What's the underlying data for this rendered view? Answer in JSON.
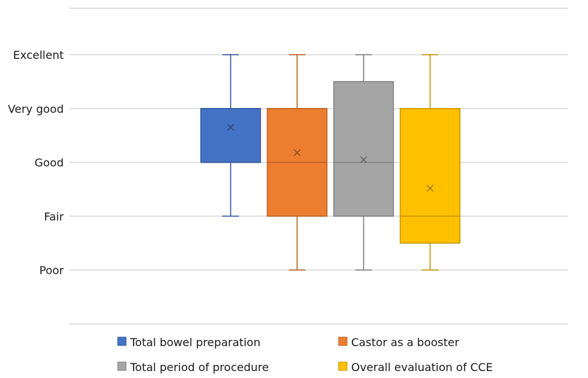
{
  "chart_data": {
    "type": "boxplot",
    "title": "",
    "xlabel": "",
    "ylabel": "",
    "y_ticks": [
      "Poor",
      "Fair",
      "Good",
      "Very good",
      "Excellent"
    ],
    "ylim": [
      1,
      5
    ],
    "grid": true,
    "legend_position": "bottom",
    "series": [
      {
        "name": "Total bowel preparation",
        "color": "#4472C4",
        "min": 2,
        "q1": 3,
        "median": 3,
        "q3": 4,
        "max": 5,
        "mean": 3.65
      },
      {
        "name": "Castor as a booster",
        "color": "#ED7D31",
        "min": 1,
        "q1": 2,
        "median": 3,
        "q3": 4,
        "max": 5,
        "mean": 3.18
      },
      {
        "name": "Total period of procedure",
        "color": "#A5A5A5",
        "min": 1,
        "q1": 2,
        "median": 3,
        "q3": 4.5,
        "max": 5,
        "mean": 3.05
      },
      {
        "name": "Overall evaluation of CCE",
        "color": "#FFC000",
        "min": 1,
        "q1": 1.5,
        "median": 2,
        "q3": 4,
        "max": 5,
        "mean": 2.52
      }
    ]
  }
}
